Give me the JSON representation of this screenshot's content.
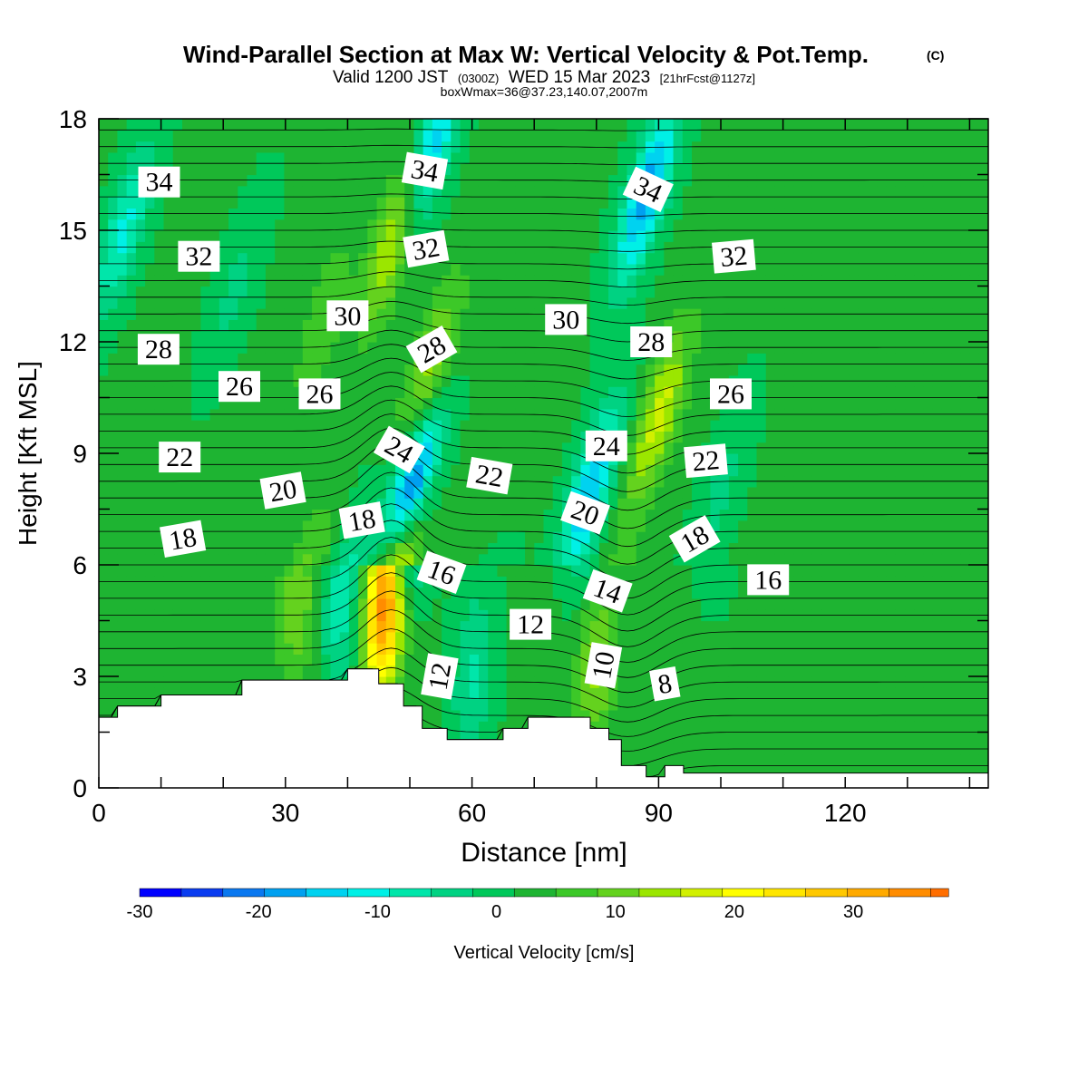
{
  "chart_data": {
    "type": "heatmap",
    "title": "Wind-Parallel Section at Max W: Vertical Velocity & Pot.Temp.",
    "title_mark": "(C)",
    "subtitle": {
      "valid": "Valid 1200 JST",
      "utc": "(0300Z)",
      "date": "WED 15 Mar 2023",
      "fcst": "[21hrFcst@1127z]"
    },
    "subtitle2": "boxWmax=36@37.23,140.07,2007m",
    "xlabel": "Distance [nm]",
    "ylabel": "Height [Kft MSL]",
    "xlim": [
      0,
      143
    ],
    "ylim": [
      0,
      18
    ],
    "x_ticks": [
      "0",
      "30",
      "60",
      "90",
      "120"
    ],
    "y_ticks": [
      "0",
      "3",
      "6",
      "9",
      "12",
      "15",
      "18"
    ],
    "x_tick_values": [
      0,
      30,
      60,
      90,
      120
    ],
    "y_tick_values": [
      0,
      3,
      6,
      9,
      12,
      15,
      18
    ],
    "colorbar": {
      "label": "Vertical Velocity [cm/s]",
      "range": [
        -30,
        38
      ],
      "step": 3.5,
      "tick_labels": [
        "-30",
        "-20",
        "-10",
        "0",
        "10",
        "20",
        "30"
      ],
      "tick_values": [
        -30,
        -20,
        -10,
        0,
        10,
        20,
        30
      ],
      "colors": [
        "#0000ff",
        "#0a3cf0",
        "#0a78f0",
        "#00a0f0",
        "#00d2f0",
        "#00f0e6",
        "#00e6aa",
        "#00d282",
        "#00c85a",
        "#1eb432",
        "#3cc828",
        "#64d21e",
        "#9be600",
        "#d2f000",
        "#ffff00",
        "#ffe600",
        "#ffc800",
        "#ffaa00",
        "#ff8c00",
        "#ff6e00",
        "#ff4600",
        "#ff0000",
        "#e6001e",
        "#c80046",
        "#a00064",
        "#6e008c"
      ]
    },
    "velocity_features": [
      {
        "x": 22,
        "z": 13.5,
        "w": -5
      },
      {
        "x": 36,
        "z": 12.5,
        "w": 6
      },
      {
        "x": 48,
        "z": 15.0,
        "w": 18
      },
      {
        "x": 46,
        "z": 5.0,
        "w": 34
      },
      {
        "x": 50,
        "z": 8.0,
        "w": -28
      },
      {
        "x": 53,
        "z": 17.0,
        "w": -20
      },
      {
        "x": 53,
        "z": 11.0,
        "w": 14
      },
      {
        "x": 32,
        "z": 5.0,
        "w": 9
      },
      {
        "x": 39,
        "z": 5.0,
        "w": -10
      },
      {
        "x": 79,
        "z": 8.0,
        "w": -18
      },
      {
        "x": 88,
        "z": 16.0,
        "w": -20
      },
      {
        "x": 90,
        "z": 10.0,
        "w": 15
      },
      {
        "x": 80,
        "z": 3.5,
        "w": 11
      },
      {
        "x": 4,
        "z": 15.0,
        "w": -12
      },
      {
        "x": 60,
        "z": 3.0,
        "w": -8
      },
      {
        "x": 100,
        "z": 8.0,
        "w": -5
      }
    ],
    "contour_labels": [
      {
        "text": "34",
        "x": 9.7,
        "z": 16.3,
        "angle": 0
      },
      {
        "text": "32",
        "x": 16.1,
        "z": 14.3,
        "angle": 0
      },
      {
        "text": "28",
        "x": 9.6,
        "z": 11.8,
        "angle": 0
      },
      {
        "text": "26",
        "x": 22.6,
        "z": 10.8,
        "angle": 0
      },
      {
        "text": "22",
        "x": 13.0,
        "z": 8.9,
        "angle": 0
      },
      {
        "text": "20",
        "x": 29.6,
        "z": 8.0,
        "angle": -10
      },
      {
        "text": "18",
        "x": 13.5,
        "z": 6.7,
        "angle": -10
      },
      {
        "text": "30",
        "x": 40.0,
        "z": 12.7,
        "angle": 0
      },
      {
        "text": "26",
        "x": 35.5,
        "z": 10.6,
        "angle": 0
      },
      {
        "text": "34",
        "x": 52.4,
        "z": 16.6,
        "angle": 10
      },
      {
        "text": "32",
        "x": 52.6,
        "z": 14.5,
        "angle": -10
      },
      {
        "text": "28",
        "x": 53.5,
        "z": 11.8,
        "angle": -30
      },
      {
        "text": "24",
        "x": 48.3,
        "z": 9.1,
        "angle": 30
      },
      {
        "text": "18",
        "x": 42.3,
        "z": 7.2,
        "angle": -10
      },
      {
        "text": "16",
        "x": 55.1,
        "z": 5.8,
        "angle": 20
      },
      {
        "text": "12",
        "x": 54.8,
        "z": 3.0,
        "angle": -80
      },
      {
        "text": "22",
        "x": 62.8,
        "z": 8.4,
        "angle": 10
      },
      {
        "text": "12",
        "x": 69.4,
        "z": 4.4,
        "angle": 0
      },
      {
        "text": "30",
        "x": 75.1,
        "z": 12.6,
        "angle": 0
      },
      {
        "text": "24",
        "x": 81.6,
        "z": 9.2,
        "angle": 0
      },
      {
        "text": "20",
        "x": 78.2,
        "z": 7.4,
        "angle": 20
      },
      {
        "text": "14",
        "x": 81.8,
        "z": 5.3,
        "angle": 20
      },
      {
        "text": "10",
        "x": 81.1,
        "z": 3.3,
        "angle": -80
      },
      {
        "text": "8",
        "x": 91.0,
        "z": 2.8,
        "angle": -10
      },
      {
        "text": "34",
        "x": 88.3,
        "z": 16.1,
        "angle": 25
      },
      {
        "text": "28",
        "x": 88.8,
        "z": 12.0,
        "angle": 0
      },
      {
        "text": "32",
        "x": 102.1,
        "z": 14.3,
        "angle": -5
      },
      {
        "text": "26",
        "x": 101.6,
        "z": 10.6,
        "angle": 0
      },
      {
        "text": "22",
        "x": 97.6,
        "z": 8.8,
        "angle": -5
      },
      {
        "text": "18",
        "x": 95.8,
        "z": 6.7,
        "angle": -30
      },
      {
        "text": "16",
        "x": 107.6,
        "z": 5.6,
        "angle": 0
      }
    ],
    "terrain": [
      [
        0,
        1.9
      ],
      [
        3,
        1.9
      ],
      [
        3,
        2.2
      ],
      [
        10,
        2.2
      ],
      [
        10,
        2.5
      ],
      [
        23,
        2.5
      ],
      [
        23,
        2.9
      ],
      [
        40,
        2.9
      ],
      [
        40,
        3.2
      ],
      [
        45,
        3.2
      ],
      [
        45,
        2.8
      ],
      [
        49,
        2.8
      ],
      [
        49,
        2.2
      ],
      [
        52,
        2.2
      ],
      [
        52,
        1.6
      ],
      [
        56,
        1.6
      ],
      [
        56,
        1.3
      ],
      [
        65,
        1.3
      ],
      [
        65,
        1.6
      ],
      [
        69,
        1.6
      ],
      [
        69,
        1.9
      ],
      [
        79,
        1.9
      ],
      [
        79,
        1.6
      ],
      [
        82,
        1.6
      ],
      [
        82,
        1.3
      ],
      [
        84,
        1.3
      ],
      [
        84,
        0.6
      ],
      [
        88,
        0.6
      ],
      [
        88,
        0.3
      ],
      [
        91,
        0.3
      ],
      [
        91,
        0.6
      ],
      [
        94,
        0.6
      ],
      [
        94,
        0.4
      ],
      [
        143,
        0.4
      ]
    ]
  }
}
